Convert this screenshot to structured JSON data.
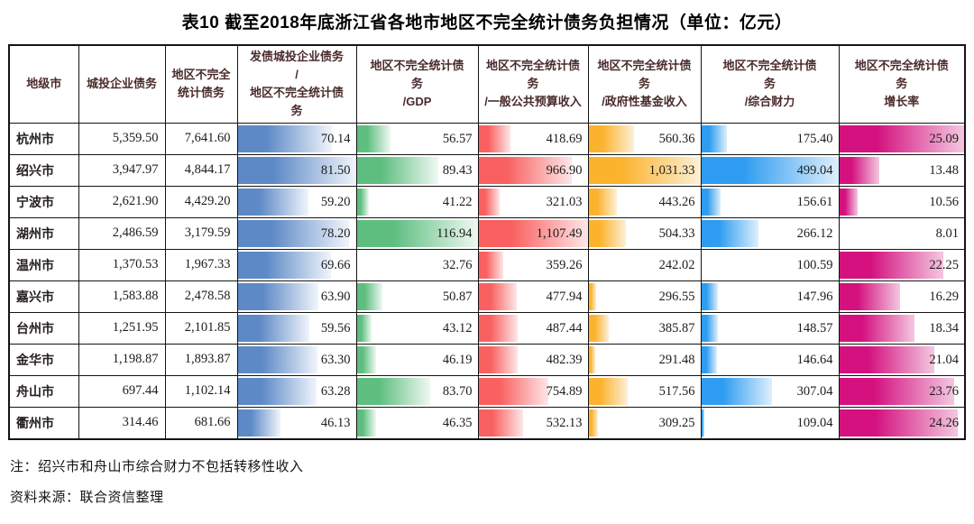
{
  "title": "表10  截至2018年底浙江省各地市地区不完全统计债务负担情况（单位：亿元）",
  "notes": {
    "note": "注：绍兴市和舟山市综合财力不包括转移性收入",
    "source": "资料来源：联合资信整理"
  },
  "chart_data": {
    "type": "table",
    "title": "表10 截至2018年底浙江省各地市地区不完全统计债务负担情况（单位：亿元）",
    "unit": "亿元",
    "columns": [
      {
        "key": "city",
        "label": "地级市",
        "type": "city",
        "width": 77
      },
      {
        "key": "utdebt",
        "label": "城投企业债务",
        "type": "num",
        "width": 96
      },
      {
        "key": "regdebt",
        "label": "地区不完全\n统计债务",
        "type": "num",
        "width": 80
      },
      {
        "key": "issuer",
        "label": "发债城投企业债务\n/\n地区不完全统计债\n务",
        "type": "bar",
        "width": 132
      },
      {
        "key": "gdp",
        "label": "地区不完全统计债\n务\n/GDP",
        "type": "bar",
        "width": 135
      },
      {
        "key": "budget",
        "label": "地区不完全统计债\n务\n/一般公共预算收入",
        "type": "bar",
        "width": 122
      },
      {
        "key": "fund",
        "label": "地区不完全统计债\n务\n/政府性基金收入",
        "type": "bar",
        "width": 125
      },
      {
        "key": "fiscal",
        "label": "地区不完全统计债\n务\n/综合财力",
        "type": "bar",
        "width": 153
      },
      {
        "key": "growth",
        "label": "地区不完全统计债\n务\n增长率",
        "type": "bar",
        "width": 140
      }
    ],
    "bar_styles": {
      "issuer": {
        "color": "#5d89c6",
        "light": "#edf2fa",
        "v0": 26.0,
        "v100": 81.5
      },
      "gdp": {
        "color": "#5ebe80",
        "light": "#ebf7ef",
        "v0": 32.76,
        "v100": 116.94
      },
      "budget": {
        "color": "#f96060",
        "light": "#fde3e4",
        "v0": 136.0,
        "v100": 1107.49
      },
      "fund": {
        "color": "#fbb32e",
        "light": "#fdeed2",
        "v0": 242.02,
        "v100": 1031.33
      },
      "fiscal": {
        "color": "#2e9cf0",
        "light": "#d9edfc",
        "v0": 100.59,
        "v100": 499.04
      },
      "growth": {
        "color": "#d4117f",
        "light": "#f3c3de",
        "v0": 8.01,
        "v100": 25.09
      }
    },
    "rows": [
      [
        "杭州市",
        "5,359.50",
        "7,641.60",
        "70.14",
        "56.57",
        "418.69",
        "560.36",
        "175.40",
        "25.09"
      ],
      [
        "绍兴市",
        "3,947.97",
        "4,844.17",
        "81.50",
        "89.43",
        "966.90",
        "1,031.33",
        "499.04",
        "13.48"
      ],
      [
        "宁波市",
        "2,621.90",
        "4,429.20",
        "59.20",
        "41.22",
        "321.03",
        "443.26",
        "156.61",
        "10.56"
      ],
      [
        "湖州市",
        "2,486.59",
        "3,179.59",
        "78.20",
        "116.94",
        "1,107.49",
        "504.33",
        "266.12",
        "8.01"
      ],
      [
        "温州市",
        "1,370.53",
        "1,967.33",
        "69.66",
        "32.76",
        "359.26",
        "242.02",
        "100.59",
        "22.25"
      ],
      [
        "嘉兴市",
        "1,583.88",
        "2,478.58",
        "63.90",
        "50.87",
        "477.94",
        "296.55",
        "147.96",
        "16.29"
      ],
      [
        "台州市",
        "1,251.95",
        "2,101.85",
        "59.56",
        "43.12",
        "487.44",
        "385.87",
        "148.57",
        "18.34"
      ],
      [
        "金华市",
        "1,198.87",
        "1,893.87",
        "63.30",
        "46.19",
        "482.39",
        "291.48",
        "146.64",
        "21.04"
      ],
      [
        "舟山市",
        "697.44",
        "1,102.14",
        "63.28",
        "83.70",
        "754.89",
        "517.56",
        "307.04",
        "23.76"
      ],
      [
        "衢州市",
        "314.46",
        "681.66",
        "46.13",
        "46.35",
        "532.13",
        "309.25",
        "109.04",
        "24.26"
      ]
    ]
  }
}
